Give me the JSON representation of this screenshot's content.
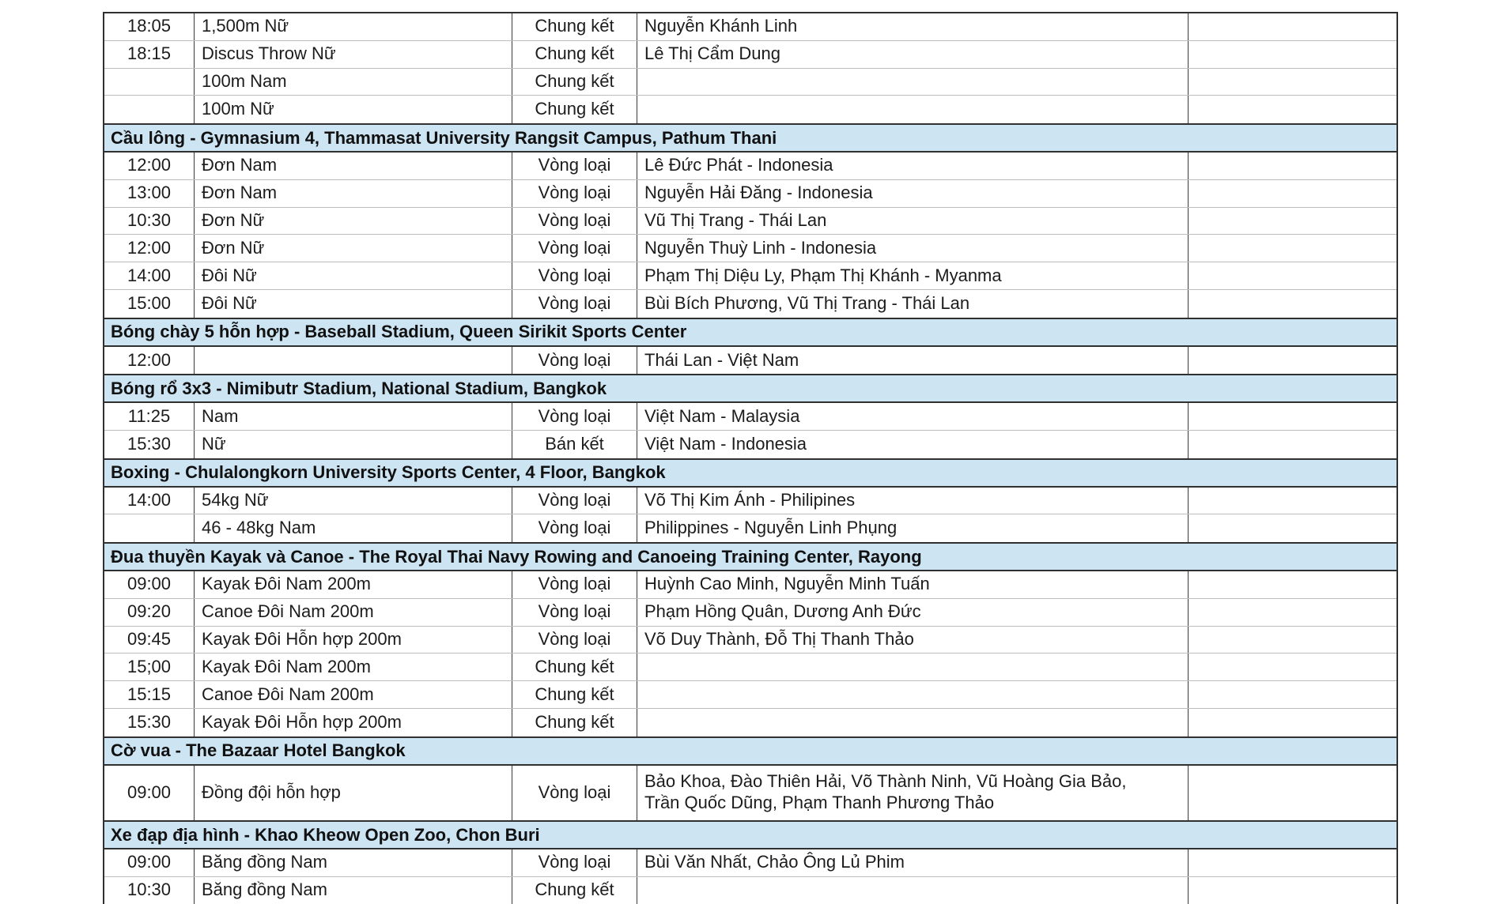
{
  "colors": {
    "section_header_bg": "#cde4f3",
    "heavy_border": "#303030",
    "light_border": "#bdbdbd",
    "text": "#1c1c1c"
  },
  "sections": [
    {
      "title": null,
      "rows": [
        {
          "time": "18:05",
          "event": "1,500m Nữ",
          "round": "Chung kết",
          "athletes": "Nguyễn Khánh Linh"
        },
        {
          "time": "18:15",
          "event": "Discus Throw Nữ",
          "round": "Chung kết",
          "athletes": "Lê Thị Cẩm Dung"
        },
        {
          "time": "",
          "event": "100m Nam",
          "round": "Chung kết",
          "athletes": ""
        },
        {
          "time": "",
          "event": "100m Nữ",
          "round": "Chung kết",
          "athletes": ""
        }
      ]
    },
    {
      "title": "Cầu lông - Gymnasium 4, Thammasat University Rangsit Campus, Pathum Thani",
      "rows": [
        {
          "time": "12:00",
          "event": "Đơn Nam",
          "round": "Vòng loại",
          "athletes": "Lê Đức Phát - Indonesia"
        },
        {
          "time": "13:00",
          "event": "Đơn Nam",
          "round": "Vòng loại",
          "athletes": "Nguyễn Hải Đăng - Indonesia"
        },
        {
          "time": "10:30",
          "event": "Đơn Nữ",
          "round": "Vòng loại",
          "athletes": "Vũ Thị Trang  - Thái Lan"
        },
        {
          "time": "12:00",
          "event": "Đơn Nữ",
          "round": "Vòng loại",
          "athletes": "Nguyễn Thuỳ Linh - Indonesia"
        },
        {
          "time": "14:00",
          "event": "Đôi Nữ",
          "round": "Vòng loại",
          "athletes": "Phạm Thị Diệu Ly, Phạm Thị Khánh - Myanma"
        },
        {
          "time": "15:00",
          "event": "Đôi Nữ",
          "round": "Vòng loại",
          "athletes": "Bùi Bích Phương, Vũ Thị Trang - Thái Lan"
        }
      ]
    },
    {
      "title": "Bóng chày 5 hỗn hợp  - Baseball Stadium, Queen Sirikit Sports Center",
      "rows": [
        {
          "time": "12:00",
          "event": "",
          "round": "Vòng loại",
          "athletes": "Thái Lan - Việt Nam"
        }
      ]
    },
    {
      "title": "Bóng rổ 3x3 - Nimibutr Stadium, National Stadium, Bangkok",
      "rows": [
        {
          "time": "11:25",
          "event": "Nam",
          "round": "Vòng loại",
          "athletes": "Việt Nam - Malaysia"
        },
        {
          "time": "15:30",
          "event": "Nữ",
          "round": "Bán kết",
          "athletes": "Việt Nam - Indonesia"
        }
      ]
    },
    {
      "title": "Boxing - Chulalongkorn University Sports Center, 4 Floor, Bangkok",
      "rows": [
        {
          "time": "14:00",
          "event": "54kg Nữ",
          "round": "Vòng loại",
          "athletes": "Võ Thị Kim Ánh - Philipines"
        },
        {
          "time": "",
          "event": "46 - 48kg Nam",
          "round": "Vòng loại",
          "athletes": "Philippines - Nguyễn Linh Phụng"
        }
      ]
    },
    {
      "title": "Đua thuyền Kayak và Canoe  - The Royal Thai Navy Rowing and Canoeing Training Center, Rayong",
      "rows": [
        {
          "time": "09:00",
          "event": "Kayak Đôi Nam 200m",
          "round": "Vòng loại",
          "athletes": "Huỳnh Cao Minh, Nguyễn Minh Tuấn"
        },
        {
          "time": "09:20",
          "event": "Canoe Đôi Nam 200m",
          "round": "Vòng loại",
          "athletes": "Phạm Hồng Quân, Dương Anh Đức"
        },
        {
          "time": "09:45",
          "event": "Kayak Đôi Hỗn hợp 200m",
          "round": "Vòng loại",
          "athletes": "Võ Duy Thành, Đỗ Thị Thanh Thảo"
        },
        {
          "time": "15;00",
          "event": "Kayak Đôi Nam 200m",
          "round": "Chung kết",
          "athletes": ""
        },
        {
          "time": "15:15",
          "event": "Canoe Đôi Nam 200m",
          "round": "Chung kết",
          "athletes": ""
        },
        {
          "time": "15:30",
          "event": "Kayak Đôi Hỗn hợp 200m",
          "round": "Chung kết",
          "athletes": ""
        }
      ]
    },
    {
      "title": "Cờ vua - The Bazaar Hotel Bangkok",
      "rows": [
        {
          "time": "09:00",
          "event": "Đồng đội hỗn hợp",
          "round": "Vòng loại",
          "athletes": "Bảo Khoa, Đào Thiên Hải, Võ Thành Ninh, Vũ Hoàng Gia Bảo,\nTrần Quốc Dũng, Phạm Thanh Phương Thảo"
        }
      ]
    },
    {
      "title": "Xe đạp địa hình - Khao Kheow Open Zoo, Chon Buri",
      "rows": [
        {
          "time": "09:00",
          "event": "Băng đồng Nam",
          "round": "Vòng loại",
          "athletes": "Bùi Văn Nhất, Chảo Ông Lủ Phim"
        },
        {
          "time": "10:30",
          "event": "Băng đồng Nam",
          "round": "Chung kết",
          "athletes": ""
        }
      ]
    }
  ]
}
